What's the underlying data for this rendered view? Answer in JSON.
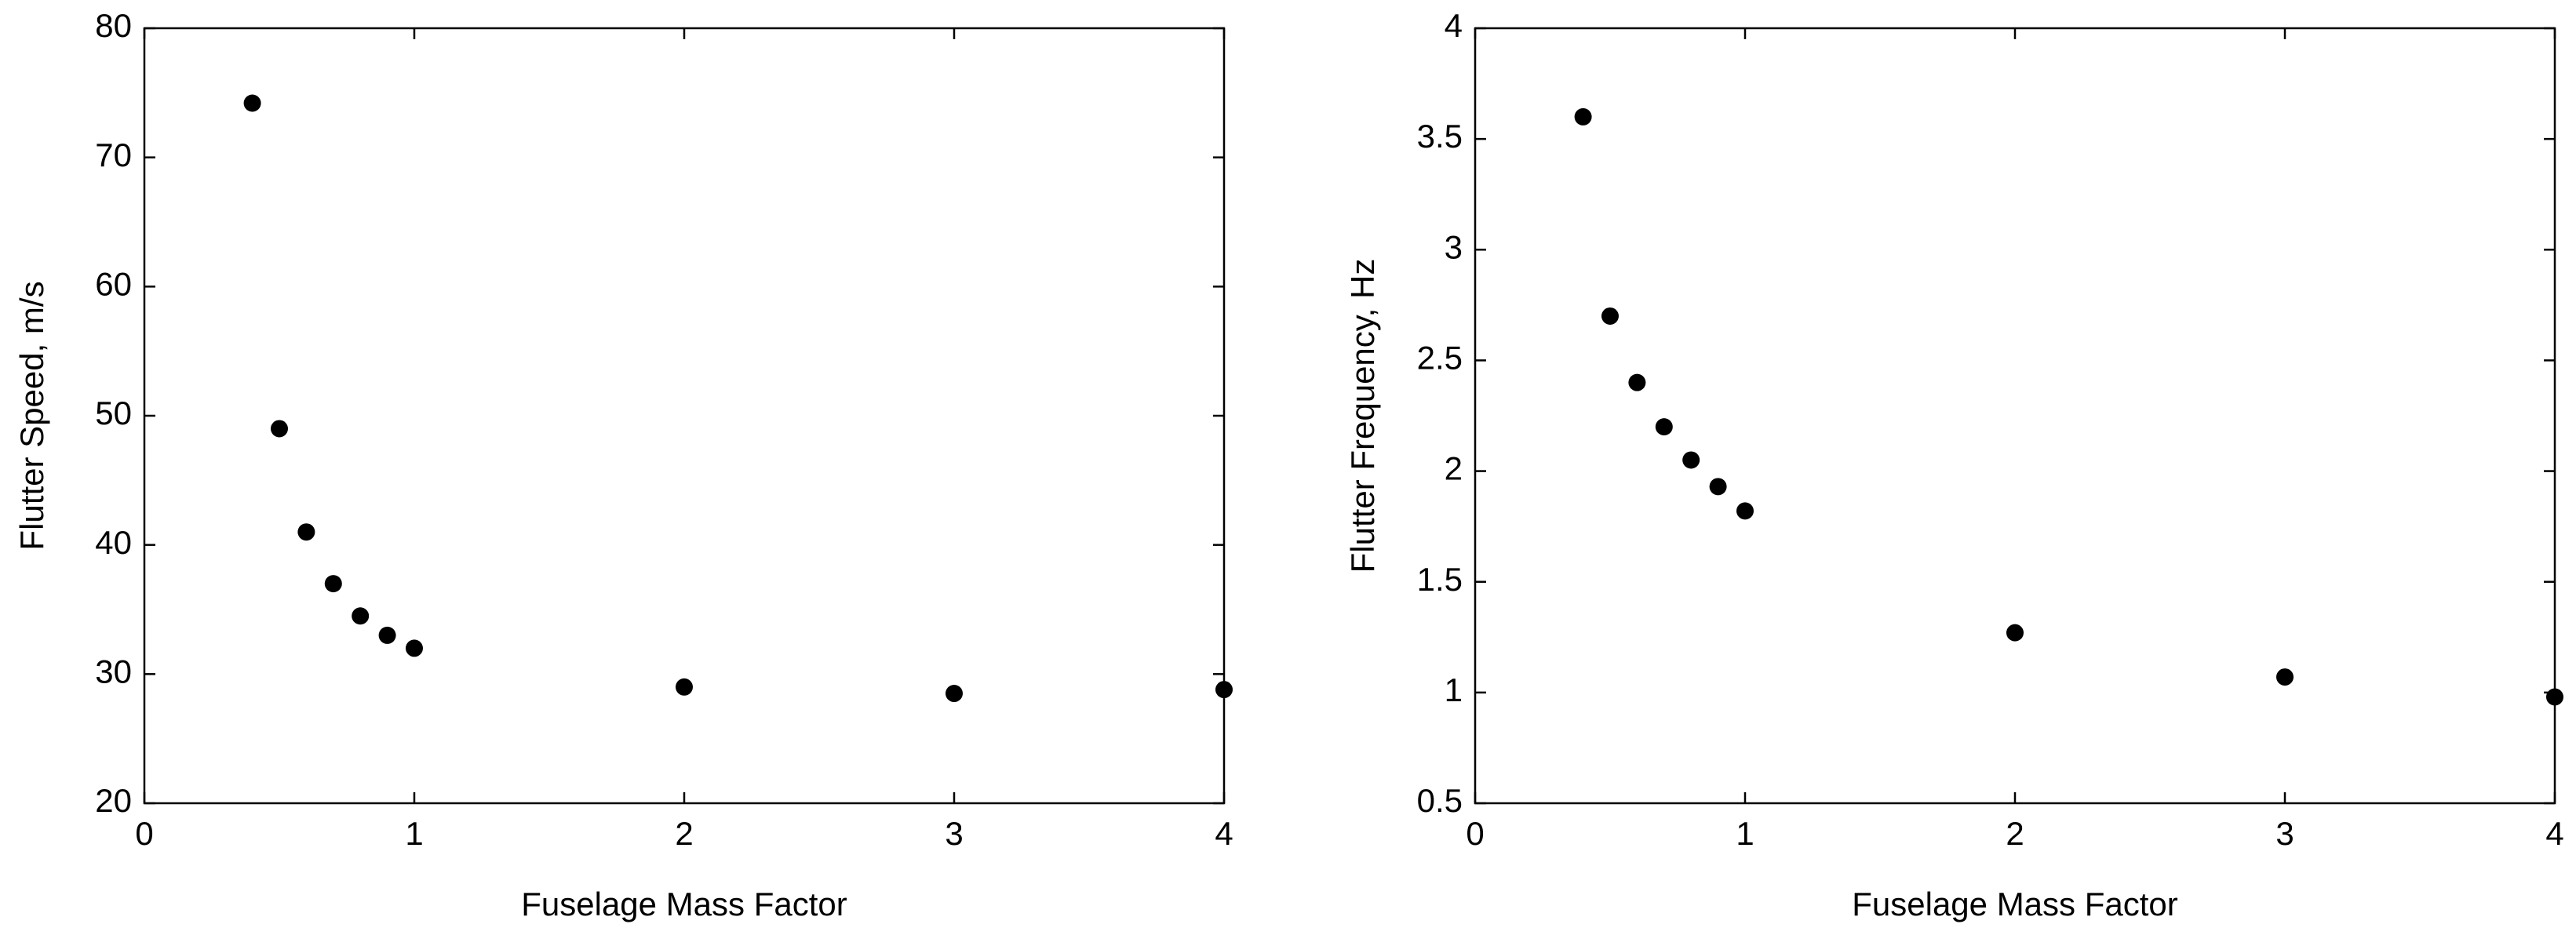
{
  "chart_data": [
    {
      "type": "scatter",
      "x_label": "Fuselage Mass Factor",
      "y_label": "Flutter Speed, m/s",
      "x": [
        0.4,
        0.5,
        0.6,
        0.7,
        0.8,
        0.9,
        1,
        2,
        3,
        4
      ],
      "values": [
        74.2,
        49,
        41,
        37,
        34.5,
        33,
        32,
        29,
        28.5,
        28.8
      ],
      "color": "#000000",
      "xlim": [
        0,
        4
      ],
      "xticks": [
        0,
        1,
        2,
        3,
        4
      ],
      "ylim": [
        20,
        80
      ],
      "yticks": [
        20,
        30,
        40,
        50,
        60,
        70,
        80
      ],
      "grid": false
    },
    {
      "type": "scatter",
      "x_label": "Fuselage Mass Factor",
      "y_label": "Flutter Frequency, Hz",
      "x": [
        0.4,
        0.5,
        0.6,
        0.7,
        0.8,
        0.9,
        1,
        2,
        3,
        4
      ],
      "values": [
        3.6,
        2.7,
        2.4,
        2.2,
        2.05,
        1.93,
        1.82,
        1.27,
        1.07,
        0.98
      ],
      "color": "#000000",
      "xlim": [
        0,
        4
      ],
      "xticks": [
        0,
        1,
        2,
        3,
        4
      ],
      "ylim": [
        0.5,
        4
      ],
      "yticks": [
        0.5,
        1,
        1.5,
        2,
        2.5,
        3,
        3.5,
        4
      ],
      "grid": false
    }
  ]
}
